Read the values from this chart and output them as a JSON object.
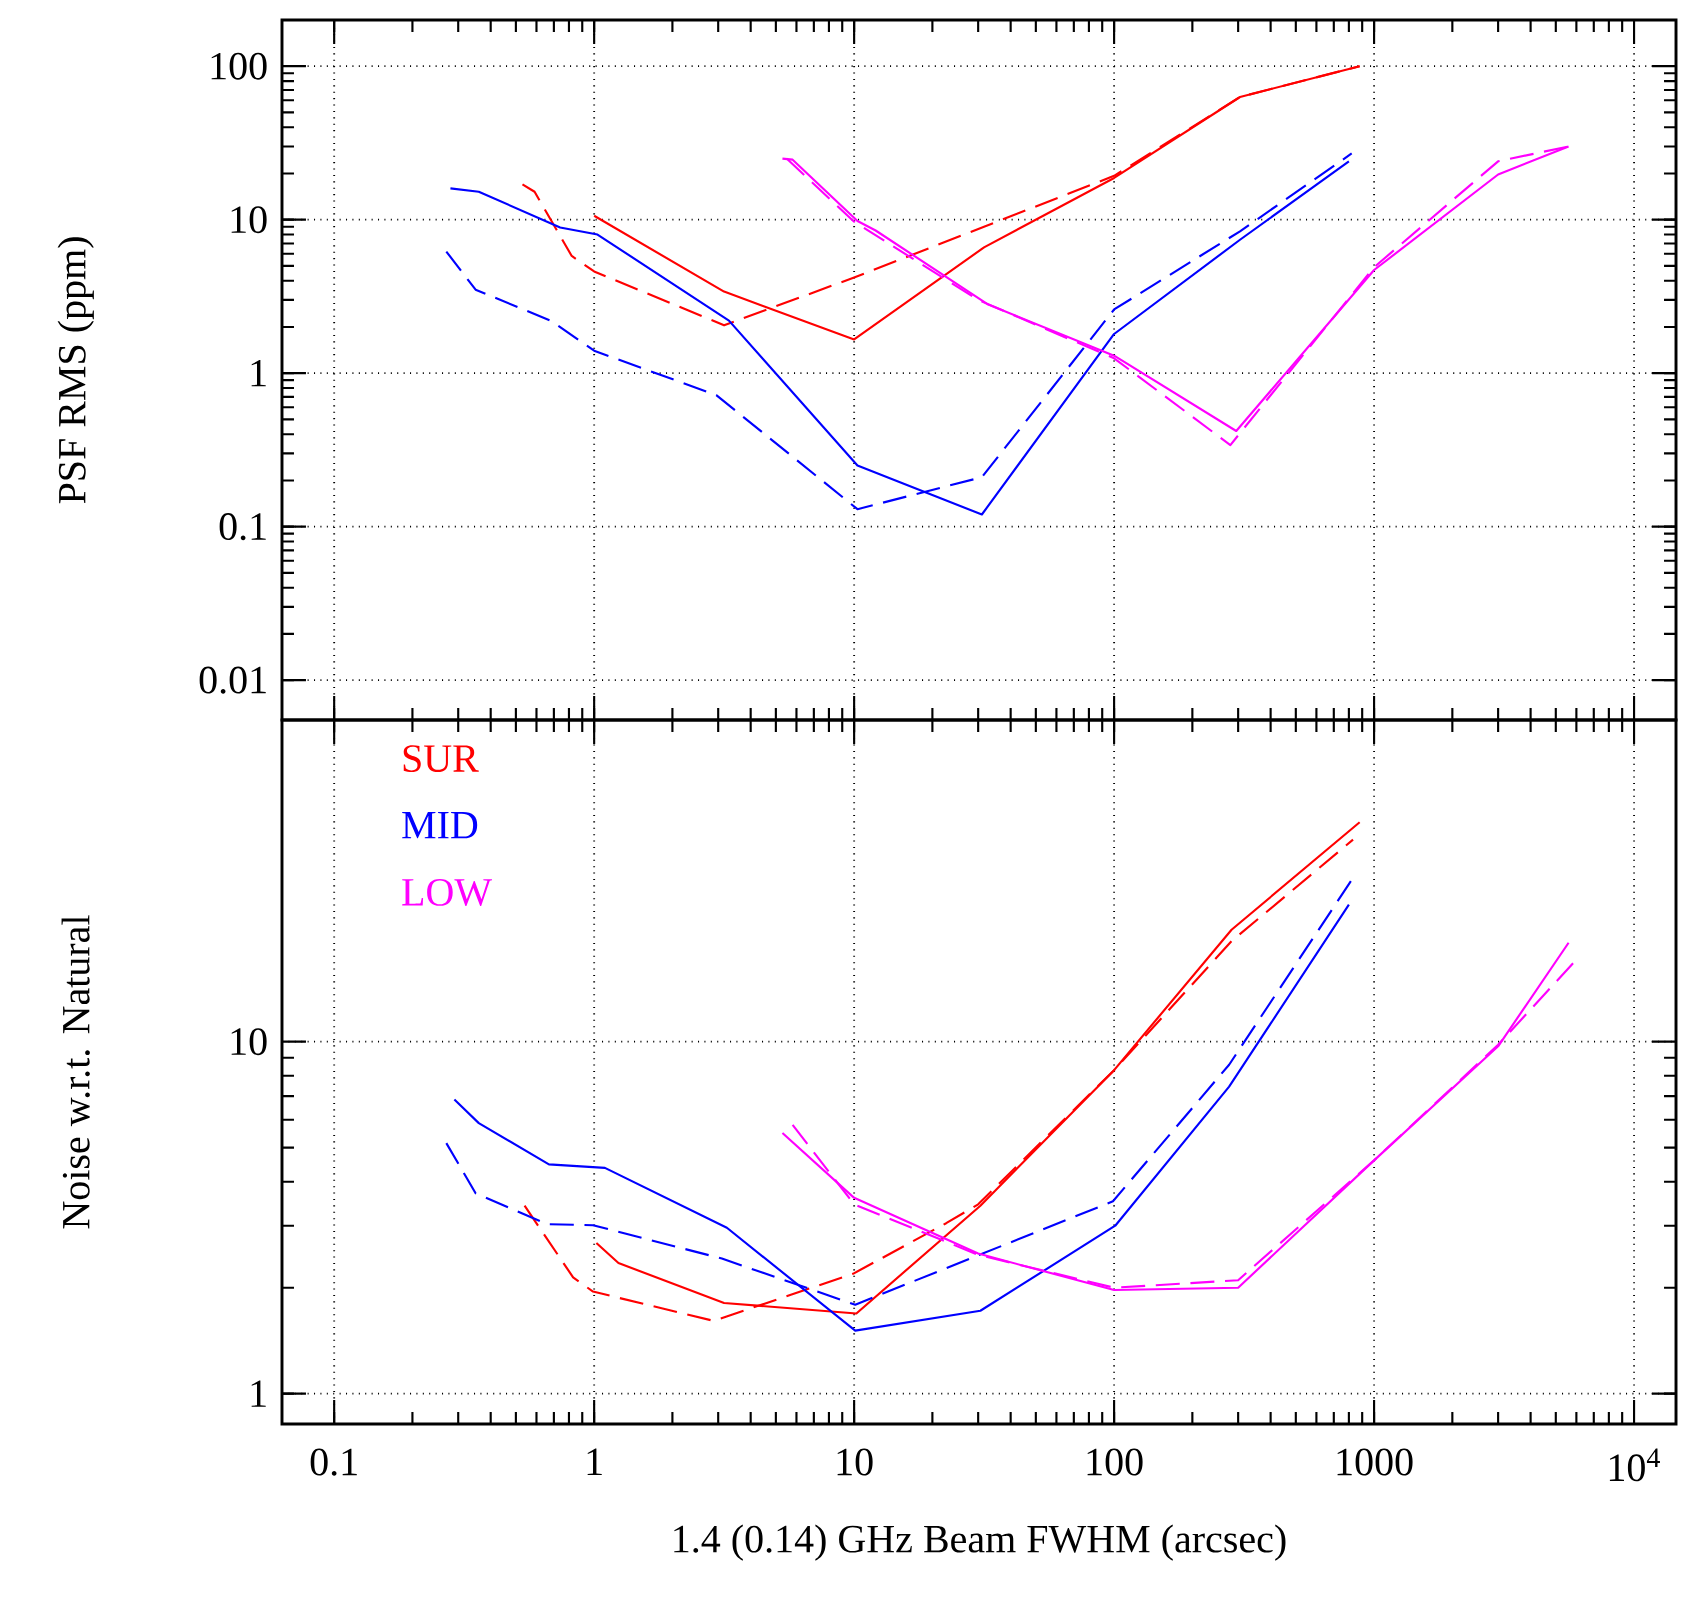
{
  "chart_data": [
    {
      "type": "line",
      "ylabel": "PSF RMS (ppm)",
      "log": "xy",
      "grid": true,
      "tick_labels": "y",
      "xlim": [
        0.063,
        14500
      ],
      "xticks": [
        0.1,
        1,
        10,
        100,
        1000,
        10000
      ],
      "ylim": [
        0.0055,
        200
      ],
      "yticks": [
        0.01,
        0.1,
        1,
        10,
        100
      ],
      "series": [
        {
          "color": "#ff0000",
          "line_style": "solid",
          "x": [
            1.0,
            3.16,
            10,
            31.6,
            100,
            305,
            880
          ],
          "values": [
            10.6,
            3.4,
            1.66,
            6.6,
            18.7,
            63,
            100
          ]
        },
        {
          "color": "#ff0000",
          "line_style": "dashed",
          "x": [
            0.53,
            0.59,
            0.82,
            1.0,
            3.16,
            10,
            31.6,
            100,
            305,
            880
          ],
          "values": [
            17,
            15.2,
            5.8,
            4.6,
            2.05,
            4.2,
            9,
            19.3,
            63,
            100
          ]
        },
        {
          "color": "#0000ff",
          "line_style": "solid",
          "x": [
            0.28,
            0.36,
            0.74,
            1.03,
            3.3,
            10.3,
            31,
            100,
            305,
            800
          ],
          "values": [
            16,
            15.2,
            8.9,
            8.0,
            2.2,
            0.25,
            0.12,
            1.8,
            7.4,
            24
          ]
        },
        {
          "color": "#0000ff",
          "line_style": "dashed",
          "x": [
            0.27,
            0.35,
            0.68,
            1.0,
            2.95,
            10.3,
            31,
            100,
            305,
            820
          ],
          "values": [
            6.2,
            3.5,
            2.2,
            1.4,
            0.72,
            0.13,
            0.21,
            2.6,
            8.4,
            27
          ]
        },
        {
          "color": "#ff00ff",
          "line_style": "solid",
          "x": [
            5.3,
            5.8,
            10.3,
            12.1,
            32.8,
            100,
            295,
            1000,
            3000,
            5600
          ],
          "values": [
            25,
            24.6,
            9.8,
            8.5,
            2.8,
            1.3,
            0.42,
            4.7,
            19.7,
            30
          ]
        },
        {
          "color": "#ff00ff",
          "line_style": "dashed",
          "x": [
            5.5,
            10,
            30,
            100,
            280,
            1000,
            3000,
            5600
          ],
          "values": [
            25,
            9.7,
            3.0,
            1.25,
            0.34,
            4.9,
            24,
            30
          ]
        }
      ]
    },
    {
      "type": "line",
      "xlabel": "1.4 (0.14) GHz Beam FWHM (arcsec)",
      "ylabel": "Noise w.r.t. Natural",
      "log": "xy",
      "grid": true,
      "legend": "top left",
      "xlim": [
        0.063,
        14500
      ],
      "xticks": [
        0.1,
        1,
        10,
        100,
        1000,
        {
          "value": 10000,
          "label": "10$^{4}$"
        }
      ],
      "ylim": [
        0.82,
        82
      ],
      "yticks": [
        1,
        10
      ],
      "series": [
        {
          "name": "SUR",
          "color": "#ff0000",
          "line_style": "solid",
          "x": [
            1.02,
            1.24,
            3.16,
            10.2,
            30.6,
            100,
            283,
            880
          ],
          "values": [
            2.68,
            2.35,
            1.81,
            1.69,
            3.42,
            8.3,
            20.8,
            42
          ]
        },
        {
          "color": "#ff0000",
          "line_style": "dashed",
          "x": [
            0.54,
            0.83,
            0.99,
            2.88,
            9.9,
            22.6,
            30,
            100,
            283,
            830
          ],
          "values": [
            3.42,
            2.14,
            1.95,
            1.61,
            2.19,
            3.05,
            3.45,
            8.3,
            19.3,
            37.5
          ]
        },
        {
          "name": "MID",
          "color": "#0000ff",
          "line_style": "solid",
          "x": [
            0.29,
            0.36,
            0.67,
            1.1,
            3.24,
            10.1,
            30.6,
            101,
            277,
            800
          ],
          "values": [
            6.85,
            5.87,
            4.48,
            4.38,
            2.96,
            1.51,
            1.72,
            3.0,
            7.45,
            24.5
          ]
        },
        {
          "color": "#0000ff",
          "line_style": "dashed",
          "x": [
            0.27,
            0.35,
            0.66,
            0.99,
            3.1,
            10.1,
            99,
            277,
            820
          ],
          "values": [
            5.15,
            3.71,
            3.03,
            3.01,
            2.42,
            1.79,
            3.52,
            8.6,
            28.8
          ]
        },
        {
          "name": "LOW",
          "color": "#ff00ff",
          "line_style": "solid",
          "x": [
            5.3,
            10,
            30,
            100,
            300,
            1000,
            3000,
            5600
          ],
          "values": [
            5.5,
            3.6,
            2.5,
            1.97,
            2.0,
            4.6,
            9.7,
            19.1
          ]
        },
        {
          "color": "#ff00ff",
          "line_style": "dashed",
          "x": [
            5.8,
            10,
            30,
            100,
            300,
            1000,
            3000,
            6000
          ],
          "values": [
            5.8,
            3.45,
            2.48,
            2.0,
            2.1,
            4.6,
            9.8,
            17.1
          ]
        }
      ]
    }
  ]
}
